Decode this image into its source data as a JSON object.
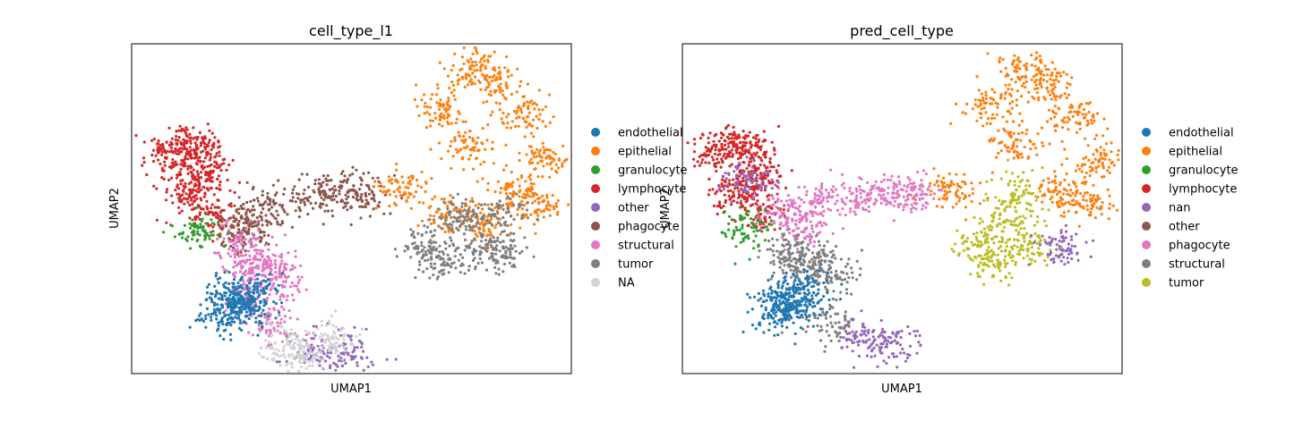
{
  "chart_data": [
    {
      "type": "scatter",
      "title": "cell_type_l1",
      "xlabel": "UMAP1",
      "ylabel": "UMAP2",
      "grid": false,
      "ticks": false,
      "legend_position": "right",
      "legend": [
        {
          "name": "endothelial",
          "color": "#1f77b4"
        },
        {
          "name": "epithelial",
          "color": "#ff7f0e"
        },
        {
          "name": "granulocyte",
          "color": "#2ca02c"
        },
        {
          "name": "lymphocyte",
          "color": "#d62728"
        },
        {
          "name": "other",
          "color": "#9467bd"
        },
        {
          "name": "phagocyte",
          "color": "#8c564b"
        },
        {
          "name": "structural",
          "color": "#e377c2"
        },
        {
          "name": "tumor",
          "color": "#7f7f7f"
        },
        {
          "name": "NA",
          "color": "#d3d3d3"
        }
      ],
      "clusters": [
        {
          "label": "lymphocyte",
          "points": [
            [
              0.4,
              0.5
            ],
            [
              0.8,
              0.85
            ],
            [
              1.3,
              0.7
            ],
            [
              1.5,
              0.1
            ],
            [
              0.9,
              -0.6
            ],
            [
              1.6,
              -1.2
            ],
            [
              1.2,
              -0.3
            ]
          ]
        },
        {
          "label": "phagocyte",
          "points": [
            [
              2.2,
              -1.6
            ],
            [
              3.0,
              -1.0
            ],
            [
              4.1,
              -0.7
            ],
            [
              5.0,
              -0.5
            ],
            [
              5.6,
              -0.6
            ],
            [
              2.7,
              -1.5
            ]
          ]
        },
        {
          "label": "structural",
          "points": [
            [
              2.3,
              -2.0
            ],
            [
              3.1,
              -2.5
            ],
            [
              3.4,
              -2.9
            ],
            [
              2.6,
              -2.6
            ],
            [
              3.2,
              -4.2
            ],
            [
              2.6,
              -3.4
            ]
          ]
        },
        {
          "label": "endothelial",
          "points": [
            [
              2.1,
              -3.6
            ],
            [
              2.3,
              -3.4
            ],
            [
              2.5,
              -3.8
            ],
            [
              1.9,
              -4.0
            ],
            [
              2.7,
              -3.3
            ]
          ]
        },
        {
          "label": "epithelial",
          "points": [
            [
              7.6,
              1.8
            ],
            [
              8.2,
              0.8
            ],
            [
              9.0,
              2.5
            ],
            [
              9.8,
              1.6
            ],
            [
              10.3,
              0.4
            ],
            [
              6.6,
              -0.5
            ],
            [
              7.8,
              -1.2
            ],
            [
              9.4,
              -0.5
            ],
            [
              8.8,
              -1.4
            ],
            [
              8.4,
              2.9
            ],
            [
              10.1,
              -0.9
            ]
          ]
        },
        {
          "label": "tumor",
          "points": [
            [
              7.2,
              -2.0
            ],
            [
              8.0,
              -1.3
            ],
            [
              8.6,
              -2.1
            ],
            [
              9.1,
              -1.1
            ],
            [
              7.6,
              -2.5
            ],
            [
              9.2,
              -2.2
            ]
          ]
        },
        {
          "label": "other",
          "points": [
            [
              4.2,
              -4.9
            ],
            [
              5.1,
              -5.0
            ]
          ]
        },
        {
          "label": "NA",
          "points": [
            [
              3.5,
              -4.8
            ],
            [
              4.0,
              -5.2
            ],
            [
              4.8,
              -4.6
            ]
          ]
        },
        {
          "label": "granulocyte",
          "points": [
            [
              1.25,
              -1.6
            ]
          ]
        }
      ]
    },
    {
      "type": "scatter",
      "title": "pred_cell_type",
      "xlabel": "UMAP1",
      "ylabel": "UMAP2",
      "grid": false,
      "ticks": false,
      "legend_position": "right",
      "legend": [
        {
          "name": "endothelial",
          "color": "#1f77b4"
        },
        {
          "name": "epithelial",
          "color": "#ff7f0e"
        },
        {
          "name": "granulocyte",
          "color": "#2ca02c"
        },
        {
          "name": "lymphocyte",
          "color": "#d62728"
        },
        {
          "name": "nan",
          "color": "#9467bd"
        },
        {
          "name": "other",
          "color": "#8c564b"
        },
        {
          "name": "phagocyte",
          "color": "#e377c2"
        },
        {
          "name": "structural",
          "color": "#7f7f7f"
        },
        {
          "name": "tumor",
          "color": "#bcbd22"
        }
      ],
      "clusters": [
        {
          "label": "lymphocyte",
          "points": [
            [
              0.4,
              0.5
            ],
            [
              0.8,
              0.85
            ],
            [
              1.3,
              0.7
            ],
            [
              1.5,
              0.1
            ],
            [
              0.9,
              -0.6
            ],
            [
              1.6,
              -1.2
            ],
            [
              1.2,
              -0.3
            ]
          ]
        },
        {
          "label": "phagocyte",
          "points": [
            [
              2.2,
              -1.1
            ],
            [
              3.0,
              -0.8
            ],
            [
              4.1,
              -0.7
            ],
            [
              5.0,
              -0.5
            ],
            [
              5.6,
              -0.6
            ],
            [
              2.6,
              -1.5
            ]
          ]
        },
        {
          "label": "structural",
          "points": [
            [
              2.3,
              -2.2
            ],
            [
              3.1,
              -2.4
            ],
            [
              3.4,
              -2.9
            ],
            [
              2.6,
              -2.6
            ],
            [
              3.4,
              -4.2
            ]
          ]
        },
        {
          "label": "endothelial",
          "points": [
            [
              2.1,
              -3.6
            ],
            [
              2.3,
              -3.4
            ],
            [
              2.5,
              -3.8
            ],
            [
              1.9,
              -4.0
            ],
            [
              2.7,
              -3.3
            ]
          ]
        },
        {
          "label": "epithelial",
          "points": [
            [
              7.6,
              1.8
            ],
            [
              8.2,
              0.8
            ],
            [
              9.0,
              2.5
            ],
            [
              9.8,
              1.6
            ],
            [
              10.3,
              0.4
            ],
            [
              6.6,
              -0.5
            ],
            [
              9.4,
              -0.5
            ],
            [
              8.4,
              2.9
            ],
            [
              10.1,
              -0.9
            ]
          ]
        },
        {
          "label": "tumor",
          "points": [
            [
              7.2,
              -2.0
            ],
            [
              8.0,
              -1.3
            ],
            [
              8.6,
              -2.1
            ],
            [
              8.2,
              -0.6
            ],
            [
              7.6,
              -2.5
            ]
          ]
        },
        {
          "label": "nan",
          "points": [
            [
              4.2,
              -4.6
            ],
            [
              5.0,
              -4.8
            ],
            [
              1.2,
              -0.2
            ],
            [
              9.4,
              -2.1
            ]
          ]
        },
        {
          "label": "granulocyte",
          "points": [
            [
              1.25,
              -1.6
            ]
          ]
        }
      ]
    }
  ]
}
